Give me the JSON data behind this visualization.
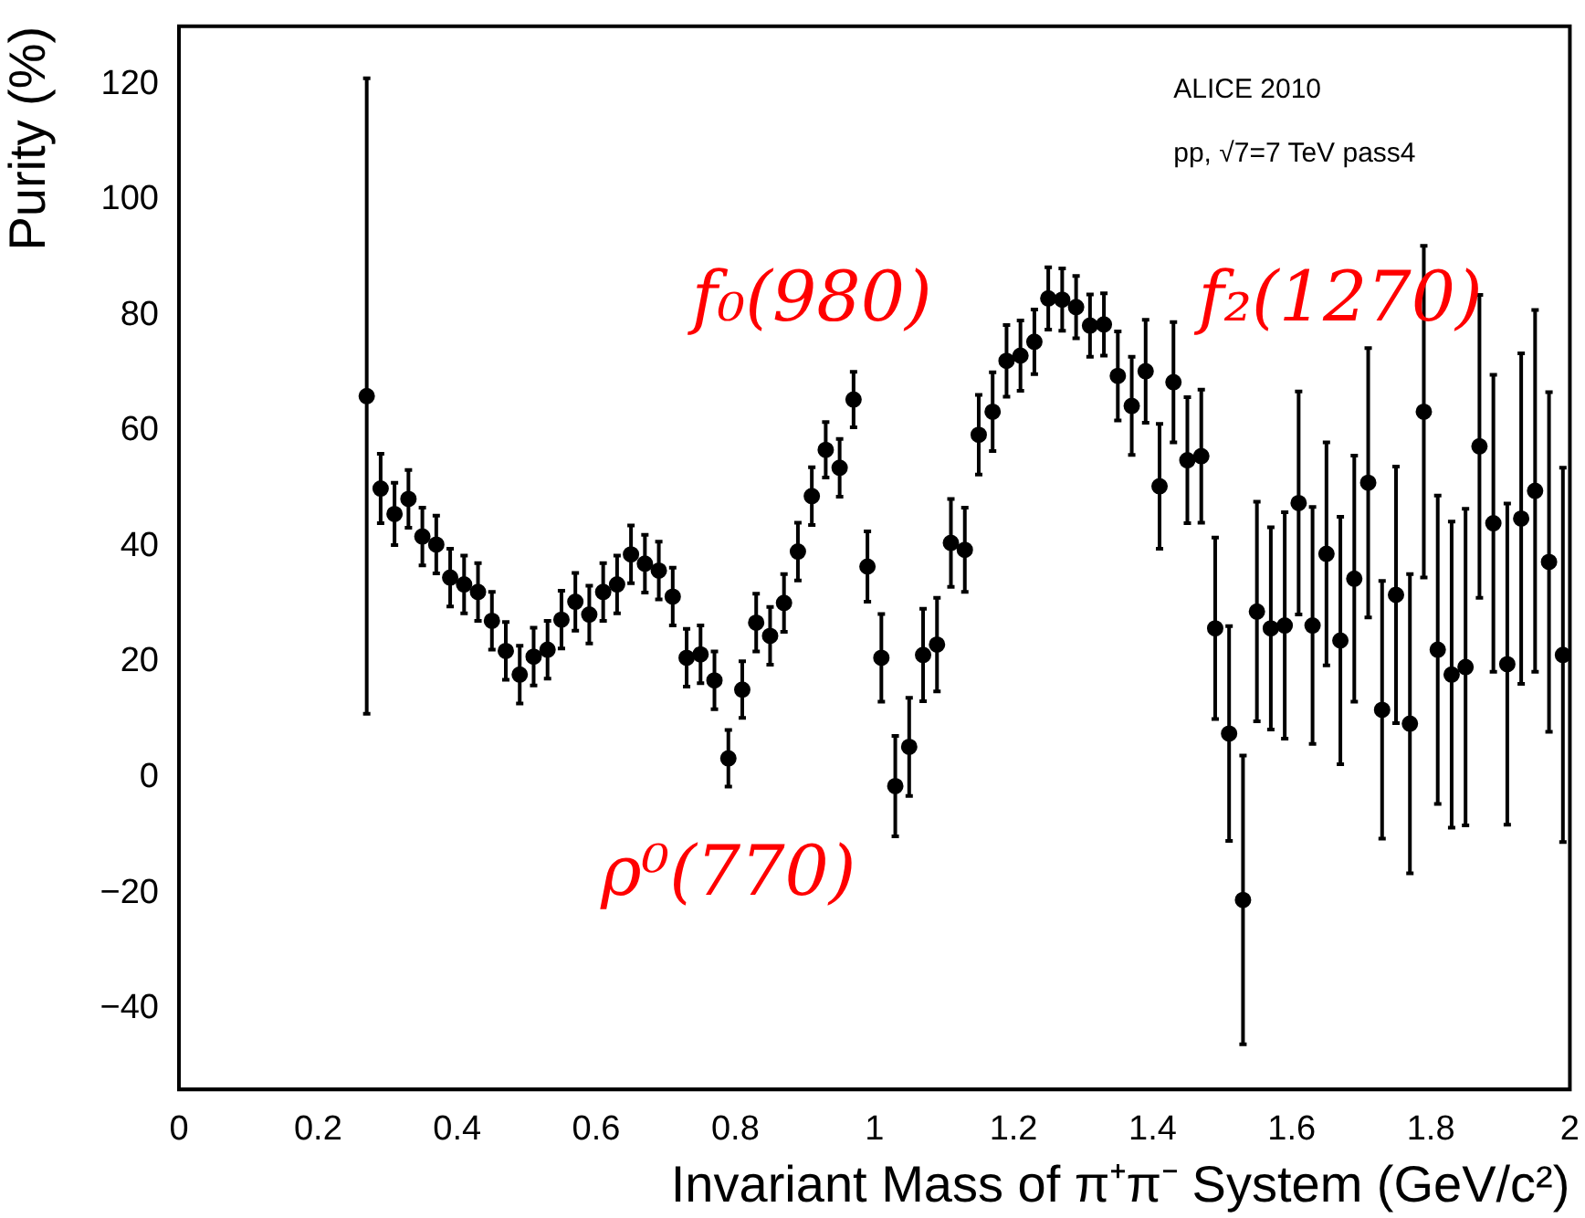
{
  "chart_data": {
    "type": "scatter",
    "xlabel": "Invariant Mass of π⁺π⁻ System (GeV/c²)",
    "ylabel": "Purity (%)",
    "annotations": [
      "ALICE 2010",
      "pp, √7=7 TeV pass4",
      "f₀(980)",
      "f₂(1270)",
      "ρ⁰(770)"
    ],
    "xlim": [
      0,
      2
    ],
    "ylim": [
      -54,
      130
    ],
    "xticks": [
      0,
      0.2,
      0.4,
      0.6,
      0.8,
      1,
      1.2,
      1.4,
      1.6,
      1.8,
      2
    ],
    "yticks": [
      {
        "value": -40,
        "label": "−40"
      },
      {
        "value": -20,
        "label": "−20"
      },
      0,
      20,
      40,
      60,
      80,
      100,
      120
    ],
    "grid": false,
    "legend": false,
    "marker": "circle",
    "x": [
      0.27,
      0.29,
      0.31,
      0.33,
      0.35,
      0.37,
      0.39,
      0.41,
      0.43,
      0.45,
      0.47,
      0.49,
      0.51,
      0.53,
      0.55,
      0.57,
      0.59,
      0.61,
      0.63,
      0.65,
      0.67,
      0.69,
      0.71,
      0.73,
      0.75,
      0.77,
      0.79,
      0.81,
      0.83,
      0.85,
      0.87,
      0.89,
      0.91,
      0.93,
      0.95,
      0.97,
      0.99,
      1.01,
      1.03,
      1.05,
      1.07,
      1.09,
      1.11,
      1.13,
      1.15,
      1.17,
      1.19,
      1.21,
      1.23,
      1.25,
      1.27,
      1.29,
      1.31,
      1.33,
      1.35,
      1.37,
      1.39,
      1.41,
      1.43,
      1.45,
      1.47,
      1.49,
      1.51,
      1.53,
      1.55,
      1.57,
      1.59,
      1.61,
      1.63,
      1.65,
      1.67,
      1.69,
      1.71,
      1.73,
      1.75,
      1.77,
      1.79,
      1.81,
      1.83,
      1.85,
      1.87,
      1.89,
      1.91,
      1.93,
      1.95,
      1.97,
      1.99
    ],
    "series": [
      {
        "color": "#000000",
        "values": [
          66,
          50,
          45.6,
          48.2,
          41.7,
          40.3,
          34.6,
          33.4,
          32.1,
          27.1,
          21.9,
          17.8,
          20.9,
          22.1,
          27.3,
          30.4,
          28.2,
          32.1,
          33.4,
          38.6,
          37,
          35.8,
          31.3,
          20.7,
          21.3,
          16.8,
          3.3,
          15.2,
          26.8,
          24.5,
          30.2,
          39.1,
          48.7,
          56.7,
          53.6,
          65.4,
          36.5,
          20.7,
          -1.5,
          5.3,
          21.2,
          23,
          40.6,
          39.4,
          59.3,
          63.3,
          72.1,
          73,
          75.4,
          82.9,
          82.7,
          81.4,
          78.2,
          78.4,
          69.5,
          64.3,
          70.3,
          50.4,
          68.4,
          54.9,
          55.6,
          25.8,
          7.6,
          -21.2,
          28.7,
          25.8,
          26.3,
          47.5,
          26.3,
          38.7,
          23.7,
          34.4,
          51,
          11.7,
          31.6,
          9.3,
          63.3,
          22.1,
          17.8,
          19.1,
          57.3,
          44,
          19.6,
          44.8,
          49.6,
          37.3,
          21.2
        ],
        "errors": [
          55,
          6,
          5.4,
          5,
          5,
          5,
          5,
          5,
          5,
          5,
          5,
          5,
          5,
          5,
          5,
          5,
          5,
          5,
          5,
          5,
          5,
          5,
          5,
          5,
          5,
          5,
          4.9,
          4.9,
          5,
          5,
          5,
          5,
          5,
          4.8,
          5,
          4.8,
          6.1,
          7.6,
          8.7,
          8.5,
          8,
          8.1,
          7.6,
          7.3,
          6.9,
          6.8,
          6.2,
          6.1,
          5.6,
          5.4,
          5.4,
          5.4,
          5.4,
          5.4,
          7.7,
          8.5,
          8.9,
          10.8,
          10.4,
          10.9,
          11.5,
          15.7,
          18.6,
          25,
          19,
          17.5,
          19.6,
          19.3,
          20.5,
          19.3,
          21.4,
          21.3,
          23.3,
          22.3,
          22.2,
          25.9,
          28.7,
          26.7,
          26.5,
          27.4,
          26.2,
          25.7,
          27.8,
          28.6,
          31.3,
          29.4,
          32.4
        ]
      }
    ]
  }
}
